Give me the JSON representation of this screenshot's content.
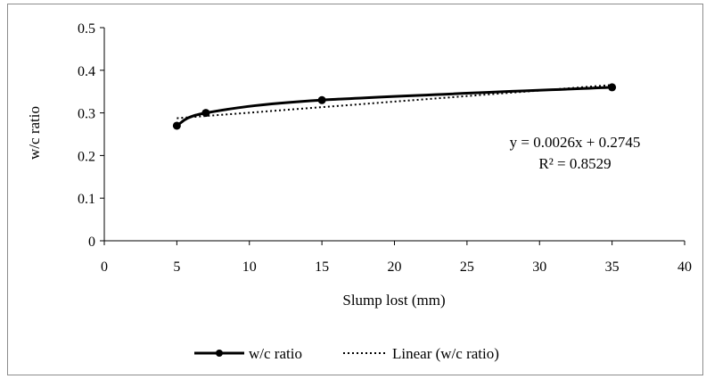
{
  "chart_data": {
    "type": "line",
    "xlabel": "Slump lost (mm)",
    "ylabel": "w/c ratio",
    "xlim": [
      0,
      40
    ],
    "ylim": [
      0,
      0.5
    ],
    "x_ticks": [
      0,
      5,
      10,
      15,
      20,
      25,
      30,
      35,
      40
    ],
    "y_ticks": [
      0,
      0.1,
      0.2,
      0.3,
      0.4,
      0.5
    ],
    "x_tick_labels": [
      "0",
      "5",
      "10",
      "15",
      "20",
      "25",
      "30",
      "35",
      "40"
    ],
    "y_tick_labels": [
      "0",
      "0.1",
      "0.2",
      "0.3",
      "0.4",
      "0.5"
    ],
    "grid": false,
    "series": [
      {
        "name": "w/c ratio",
        "style": "solid line with circle markers, smoothed",
        "color": "#000000",
        "x": [
          5,
          7,
          15,
          35
        ],
        "y": [
          0.27,
          0.3,
          0.33,
          0.36
        ]
      },
      {
        "name": "Linear (w/c ratio)",
        "style": "dotted trendline",
        "color": "#000000",
        "slope": 0.0026,
        "intercept": 0.2745,
        "x_range": [
          5,
          35
        ]
      }
    ],
    "annotations": {
      "equation": "y = 0.0026x + 0.2745",
      "r_squared": "R² = 0.8529"
    },
    "legend": {
      "position": "bottom",
      "entries": [
        "w/c ratio",
        "Linear (w/c ratio)"
      ]
    }
  }
}
